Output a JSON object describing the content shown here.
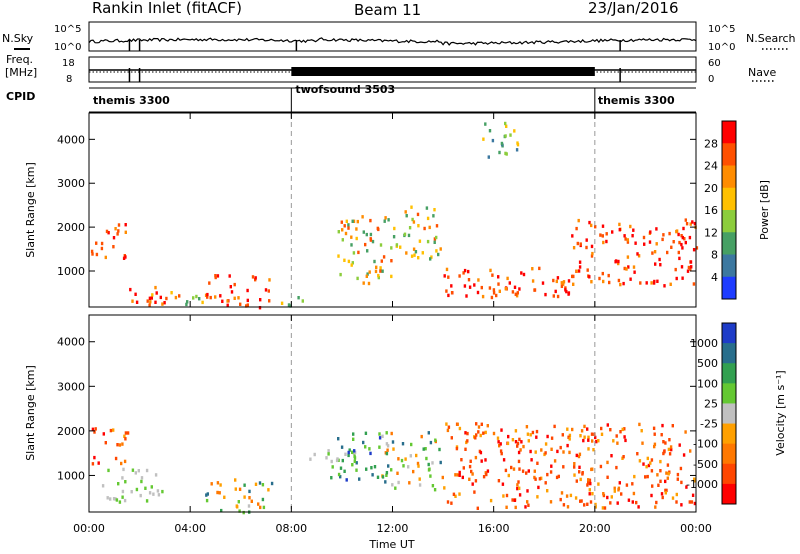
{
  "header": {
    "title": "Rankin Inlet (fitACF)",
    "beam": "Beam 11",
    "date": "23/Jan/2016"
  },
  "noise_panel": {
    "left_label": "N.Sky",
    "right_label": "N.Search",
    "left_ticks": [
      "10^5",
      "10^0"
    ],
    "right_ticks": [
      "10^5",
      "10^0"
    ]
  },
  "freq_panel": {
    "left_label_line1": "Freq.",
    "left_label_line2": "[MHz]",
    "right_label": "Nave",
    "left_ticks": [
      "18",
      "8"
    ],
    "right_ticks": [
      "60",
      "0"
    ]
  },
  "cpid": {
    "label": "CPID",
    "segments": [
      {
        "name": "themis 3300",
        "start_hour": 0,
        "end_hour": 8
      },
      {
        "name": "twofsound 3503",
        "start_hour": 8,
        "end_hour": 20
      },
      {
        "name": "themis 3300",
        "start_hour": 20,
        "end_hour": 24
      }
    ]
  },
  "x_axis": {
    "label": "Time UT",
    "ticks": [
      "00:00",
      "04:00",
      "08:00",
      "12:00",
      "16:00",
      "20:00",
      "00:00"
    ],
    "range_hours": [
      0,
      24
    ]
  },
  "chart_data": [
    {
      "type": "heatmap",
      "name": "power",
      "ylabel": "Slant Range [km]",
      "ylim": [
        180,
        4600
      ],
      "yticks": [
        "4000",
        "3000",
        "2000",
        "1000"
      ],
      "colorbar": {
        "label": "Power [dB]",
        "ticks": [
          "28",
          "24",
          "20",
          "16",
          "12",
          "8",
          "4"
        ],
        "colors": [
          "#ff0000",
          "#ff5000",
          "#ff8c00",
          "#ffc000",
          "#8ccd3c",
          "#46a064",
          "#3c78a0",
          "#1e3cff"
        ]
      },
      "regions": [
        {
          "t0": 0.0,
          "t1": 1.5,
          "r0": 1300,
          "r1": 2100,
          "level": "high"
        },
        {
          "t0": 1.5,
          "t1": 3.0,
          "r0": 200,
          "r1": 700,
          "level": "high"
        },
        {
          "t0": 2.3,
          "t1": 4.5,
          "r0": 200,
          "r1": 550,
          "level": "mid"
        },
        {
          "t0": 4.5,
          "t1": 7.2,
          "r0": 200,
          "r1": 950,
          "level": "high"
        },
        {
          "t0": 7.2,
          "t1": 8.5,
          "r0": 200,
          "r1": 450,
          "level": "mid"
        },
        {
          "t0": 9.8,
          "t1": 12.0,
          "r0": 700,
          "r1": 2300,
          "level": "mid"
        },
        {
          "t0": 12.0,
          "t1": 14.0,
          "r0": 1300,
          "r1": 2500,
          "level": "mid"
        },
        {
          "t0": 14.0,
          "t1": 19.0,
          "r0": 300,
          "r1": 1100,
          "level": "high"
        },
        {
          "t0": 19.0,
          "t1": 24.0,
          "r0": 700,
          "r1": 2200,
          "level": "high"
        },
        {
          "t0": 15.5,
          "t1": 17.0,
          "r0": 3600,
          "r1": 4400,
          "level": "low"
        }
      ]
    },
    {
      "type": "heatmap",
      "name": "velocity",
      "ylabel": "Slant Range [km]",
      "ylim": [
        180,
        4600
      ],
      "yticks": [
        "4000",
        "3000",
        "2000",
        "1000"
      ],
      "colorbar": {
        "label": "Velocity [m s⁻¹]",
        "ticks": [
          "1000",
          "500",
          "100",
          "25",
          "-25",
          "-100",
          "-500",
          "-1000"
        ],
        "colors": [
          "#1e3cc8",
          "#286e8c",
          "#32a050",
          "#64c832",
          "#c0c0c0",
          "#ffa000",
          "#ff7800",
          "#ff4600",
          "#ff0000"
        ]
      },
      "regions": [
        {
          "t0": 0.0,
          "t1": 1.5,
          "r0": 1300,
          "r1": 2100,
          "level": "neg"
        },
        {
          "t0": 0.5,
          "t1": 3.0,
          "r0": 400,
          "r1": 1200,
          "level": "zero"
        },
        {
          "t0": 4.5,
          "t1": 7.2,
          "r0": 200,
          "r1": 950,
          "level": "mixed"
        },
        {
          "t0": 8.2,
          "t1": 10.5,
          "r0": 1300,
          "r1": 1600,
          "level": "zero"
        },
        {
          "t0": 9.5,
          "t1": 11.5,
          "r0": 900,
          "r1": 2000,
          "level": "pos"
        },
        {
          "t0": 11.5,
          "t1": 14.0,
          "r0": 700,
          "r1": 2000,
          "level": "mixed"
        },
        {
          "t0": 14.0,
          "t1": 24.0,
          "r0": 300,
          "r1": 2200,
          "level": "neg"
        }
      ]
    }
  ]
}
